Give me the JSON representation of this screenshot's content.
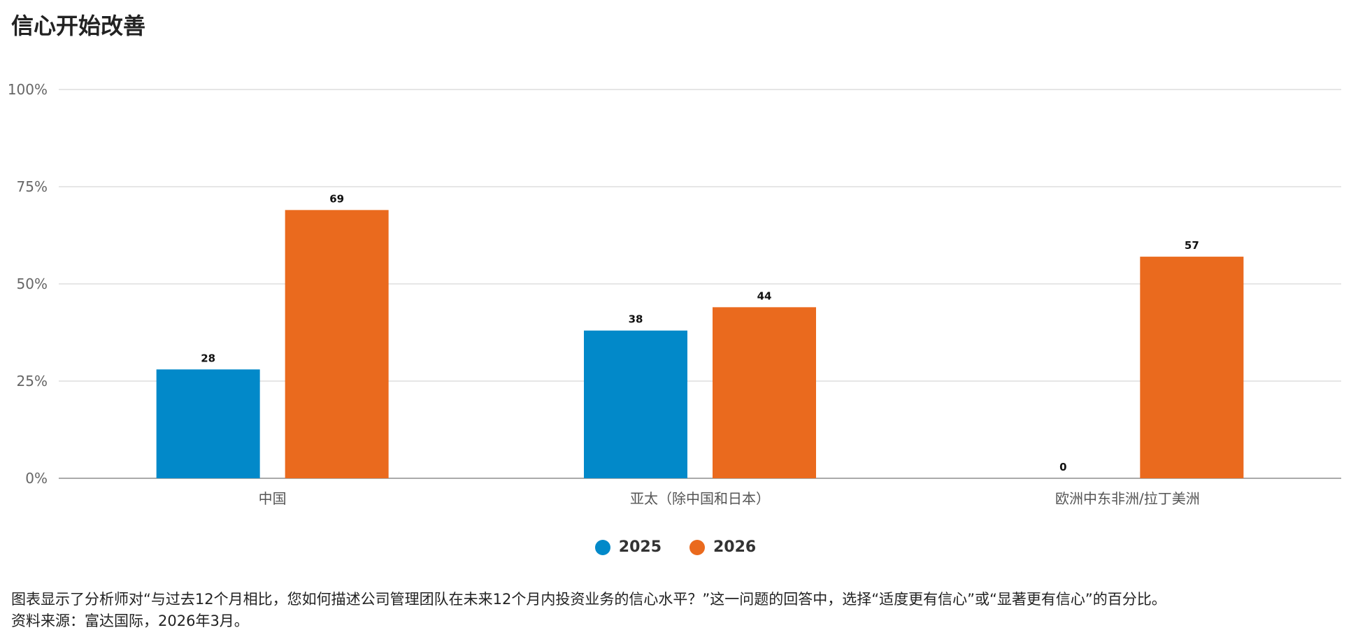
{
  "header": {
    "title": "信心开始改善"
  },
  "chart_data": {
    "type": "bar",
    "categories": [
      "中国",
      "亚太（除中国和日本）",
      "欧洲中东非洲/拉丁美洲"
    ],
    "series": [
      {
        "name": "2025",
        "values": [
          28,
          38,
          0
        ],
        "color": "#0289C9"
      },
      {
        "name": "2026",
        "values": [
          69,
          44,
          57
        ],
        "color": "#EA6A1E"
      }
    ],
    "ylim": [
      0,
      100
    ],
    "yticks": [
      0,
      25,
      50,
      75,
      100
    ],
    "ytick_labels": [
      "0%",
      "25%",
      "50%",
      "75%",
      "100%"
    ],
    "grid": true,
    "legend_position": "bottom-center"
  },
  "footer": {
    "note": "图表显示了分析师对“与过去12个月相比，您如何描述公司管理团队在未来12个月内投资业务的信心水平？”这一问题的回答中，选择“适度更有信心”或“显著更有信心”的百分比。",
    "source": "资料来源：富达国际，2026年3月。"
  }
}
